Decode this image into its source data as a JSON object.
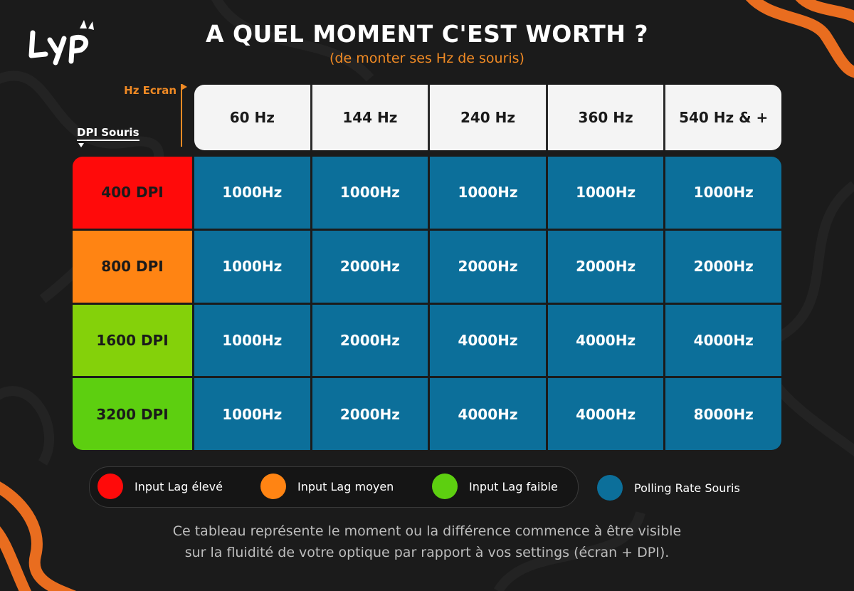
{
  "title": "A QUEL MOMENT C'EST WORTH ?",
  "subtitle": "(de monter ses Hz de souris)",
  "axis": {
    "screen_hz_label": "Hz Ecran",
    "mouse_dpi_label": "DPI Souris"
  },
  "columns": [
    "60 Hz",
    "144 Hz",
    "240 Hz",
    "360 Hz",
    "540 Hz & +"
  ],
  "rows": [
    {
      "label": "400 DPI",
      "color": "#ff0a0a",
      "cells": [
        "1000Hz",
        "1000Hz",
        "1000Hz",
        "1000Hz",
        "1000Hz"
      ]
    },
    {
      "label": "800 DPI",
      "color": "#ff8413",
      "cells": [
        "1000Hz",
        "2000Hz",
        "2000Hz",
        "2000Hz",
        "2000Hz"
      ]
    },
    {
      "label": "1600 DPI",
      "color": "#84d10a",
      "cells": [
        "1000Hz",
        "2000Hz",
        "4000Hz",
        "4000Hz",
        "4000Hz"
      ]
    },
    {
      "label": "3200 DPI",
      "color": "#5dcf10",
      "cells": [
        "1000Hz",
        "2000Hz",
        "4000Hz",
        "4000Hz",
        "8000Hz"
      ]
    }
  ],
  "legend": [
    {
      "label": "Input Lag élevé",
      "color": "#ff0a0a"
    },
    {
      "label": "Input Lag moyen",
      "color": "#ff8413"
    },
    {
      "label": "Input Lag faible",
      "color": "#5dcf10"
    },
    {
      "label": "Polling Rate Souris",
      "color": "#0c6f9a"
    }
  ],
  "footer": {
    "line1": "Ce tableau représente le moment ou la différence commence à être visible",
    "line2": "sur la fluidité de votre optique par rapport à vos settings (écran + DPI)."
  },
  "colors": {
    "accent": "#f08a24",
    "cell": "#0c6f9a",
    "background": "#1b1b1b"
  }
}
